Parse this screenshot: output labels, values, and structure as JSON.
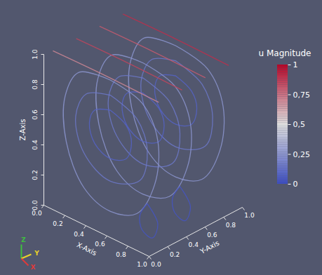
{
  "chart_data": {
    "type": "streamlines",
    "xlabel": "X-Axis",
    "ylabel": "Y-Axis",
    "zlabel": "Z-Axis",
    "xlim": [
      0,
      1
    ],
    "ylim": [
      0,
      1
    ],
    "zlim": [
      0,
      1
    ],
    "xticks": [
      {
        "value": 0,
        "label": "0.0"
      },
      {
        "value": 0.2,
        "label": "0.2"
      },
      {
        "value": 0.4,
        "label": "0.4"
      },
      {
        "value": 0.6,
        "label": "0.6"
      },
      {
        "value": 0.8,
        "label": "0.8"
      },
      {
        "value": 1,
        "label": "1.0"
      }
    ],
    "yticks": [
      {
        "value": 0,
        "label": "0.0"
      },
      {
        "value": 0.2,
        "label": "0.2"
      },
      {
        "value": 0.4,
        "label": "0.4"
      },
      {
        "value": 0.6,
        "label": "0.6"
      },
      {
        "value": 0.8,
        "label": "0.8"
      },
      {
        "value": 1,
        "label": "1.0"
      }
    ],
    "zticks": [
      {
        "value": 0,
        "label": "0.0"
      },
      {
        "value": 0.2,
        "label": "0.2"
      },
      {
        "value": 0.4,
        "label": "0.4"
      },
      {
        "value": 0.6,
        "label": "0.6"
      },
      {
        "value": 0.8,
        "label": "0.8"
      },
      {
        "value": 1,
        "label": "1.0"
      }
    ],
    "colorbar": {
      "label": "u Magnitude",
      "range": [
        0,
        1
      ],
      "ticks": [
        {
          "value": 0,
          "label": "0"
        },
        {
          "value": 0.25,
          "label": "0,25"
        },
        {
          "value": 0.5,
          "label": "0,5"
        },
        {
          "value": 0.75,
          "label": "0,75"
        },
        {
          "value": 1,
          "label": "1"
        }
      ]
    },
    "axes_triad": {
      "x": "X",
      "y": "Y",
      "z": "Z"
    },
    "streamlines": [
      {
        "u": 0.25,
        "points": [
          [
            0.5,
            0.85,
            0.95
          ],
          [
            0.8,
            0.85,
            0.9
          ],
          [
            0.95,
            0.85,
            0.7
          ],
          [
            0.92,
            0.85,
            0.4
          ],
          [
            0.75,
            0.85,
            0.15
          ],
          [
            0.5,
            0.85,
            0.08
          ],
          [
            0.25,
            0.85,
            0.15
          ],
          [
            0.08,
            0.85,
            0.4
          ],
          [
            0.07,
            0.85,
            0.7
          ],
          [
            0.2,
            0.85,
            0.9
          ],
          [
            0.5,
            0.85,
            0.95
          ]
        ]
      },
      {
        "u": 0.15,
        "points": [
          [
            0.5,
            0.85,
            0.85
          ],
          [
            0.75,
            0.85,
            0.78
          ],
          [
            0.85,
            0.85,
            0.6
          ],
          [
            0.78,
            0.85,
            0.38
          ],
          [
            0.5,
            0.85,
            0.28
          ],
          [
            0.25,
            0.85,
            0.38
          ],
          [
            0.17,
            0.85,
            0.6
          ],
          [
            0.27,
            0.85,
            0.78
          ],
          [
            0.5,
            0.85,
            0.85
          ]
        ]
      },
      {
        "u": 0.08,
        "points": [
          [
            0.5,
            0.85,
            0.75
          ],
          [
            0.65,
            0.85,
            0.7
          ],
          [
            0.7,
            0.85,
            0.6
          ],
          [
            0.65,
            0.85,
            0.48
          ],
          [
            0.5,
            0.85,
            0.43
          ],
          [
            0.35,
            0.85,
            0.48
          ],
          [
            0.3,
            0.85,
            0.6
          ],
          [
            0.35,
            0.85,
            0.7
          ],
          [
            0.5,
            0.85,
            0.75
          ]
        ]
      },
      {
        "u": 0.25,
        "points": [
          [
            0.5,
            0.5,
            0.95
          ],
          [
            0.8,
            0.5,
            0.9
          ],
          [
            0.95,
            0.5,
            0.7
          ],
          [
            0.92,
            0.5,
            0.4
          ],
          [
            0.75,
            0.5,
            0.15
          ],
          [
            0.5,
            0.5,
            0.08
          ],
          [
            0.25,
            0.5,
            0.15
          ],
          [
            0.08,
            0.5,
            0.4
          ],
          [
            0.07,
            0.5,
            0.7
          ],
          [
            0.2,
            0.5,
            0.9
          ],
          [
            0.5,
            0.5,
            0.95
          ]
        ]
      },
      {
        "u": 0.15,
        "points": [
          [
            0.5,
            0.5,
            0.85
          ],
          [
            0.75,
            0.5,
            0.78
          ],
          [
            0.85,
            0.5,
            0.6
          ],
          [
            0.78,
            0.5,
            0.38
          ],
          [
            0.5,
            0.5,
            0.28
          ],
          [
            0.25,
            0.5,
            0.38
          ],
          [
            0.17,
            0.5,
            0.6
          ],
          [
            0.27,
            0.5,
            0.78
          ],
          [
            0.5,
            0.5,
            0.85
          ]
        ]
      },
      {
        "u": 0.08,
        "points": [
          [
            0.5,
            0.5,
            0.75
          ],
          [
            0.65,
            0.5,
            0.7
          ],
          [
            0.7,
            0.5,
            0.6
          ],
          [
            0.65,
            0.5,
            0.48
          ],
          [
            0.5,
            0.5,
            0.43
          ],
          [
            0.35,
            0.5,
            0.48
          ],
          [
            0.3,
            0.5,
            0.6
          ],
          [
            0.35,
            0.5,
            0.7
          ],
          [
            0.5,
            0.5,
            0.75
          ]
        ]
      },
      {
        "u": 0.03,
        "points": [
          [
            0.85,
            0.5,
            0.25
          ],
          [
            0.95,
            0.5,
            0.15
          ],
          [
            0.9,
            0.5,
            0.04
          ],
          [
            0.8,
            0.5,
            0.06
          ],
          [
            0.78,
            0.5,
            0.15
          ],
          [
            0.85,
            0.5,
            0.25
          ]
        ]
      },
      {
        "u": 0.25,
        "points": [
          [
            0.5,
            0.15,
            0.95
          ],
          [
            0.8,
            0.15,
            0.9
          ],
          [
            0.95,
            0.15,
            0.7
          ],
          [
            0.92,
            0.15,
            0.4
          ],
          [
            0.75,
            0.15,
            0.15
          ],
          [
            0.5,
            0.15,
            0.08
          ],
          [
            0.25,
            0.15,
            0.15
          ],
          [
            0.08,
            0.15,
            0.4
          ],
          [
            0.07,
            0.15,
            0.7
          ],
          [
            0.2,
            0.15,
            0.9
          ],
          [
            0.5,
            0.15,
            0.95
          ]
        ]
      },
      {
        "u": 0.15,
        "points": [
          [
            0.5,
            0.15,
            0.85
          ],
          [
            0.75,
            0.15,
            0.78
          ],
          [
            0.85,
            0.15,
            0.6
          ],
          [
            0.78,
            0.15,
            0.38
          ],
          [
            0.5,
            0.15,
            0.28
          ],
          [
            0.25,
            0.15,
            0.38
          ],
          [
            0.17,
            0.15,
            0.6
          ],
          [
            0.27,
            0.15,
            0.78
          ],
          [
            0.5,
            0.15,
            0.85
          ]
        ]
      },
      {
        "u": 0.08,
        "points": [
          [
            0.5,
            0.15,
            0.75
          ],
          [
            0.65,
            0.15,
            0.7
          ],
          [
            0.7,
            0.15,
            0.6
          ],
          [
            0.65,
            0.15,
            0.48
          ],
          [
            0.5,
            0.15,
            0.43
          ],
          [
            0.35,
            0.15,
            0.48
          ],
          [
            0.3,
            0.15,
            0.6
          ],
          [
            0.35,
            0.15,
            0.7
          ],
          [
            0.5,
            0.15,
            0.75
          ]
        ]
      },
      {
        "u": 0.03,
        "points": [
          [
            0.85,
            0.15,
            0.25
          ],
          [
            0.95,
            0.15,
            0.15
          ],
          [
            0.9,
            0.15,
            0.04
          ],
          [
            0.8,
            0.15,
            0.06
          ],
          [
            0.78,
            0.15,
            0.15
          ],
          [
            0.85,
            0.15,
            0.25
          ]
        ]
      },
      {
        "u": 0.9,
        "points": [
          [
            0,
            0.85,
            0.99
          ],
          [
            0.5,
            0.85,
            0.995
          ],
          [
            1,
            0.85,
            0.99
          ]
        ]
      },
      {
        "u": 0.8,
        "points": [
          [
            0,
            0.6,
            0.99
          ],
          [
            0.5,
            0.6,
            0.995
          ],
          [
            1,
            0.6,
            0.99
          ]
        ]
      },
      {
        "u": 0.85,
        "points": [
          [
            0,
            0.35,
            0.99
          ],
          [
            0.5,
            0.35,
            0.995
          ],
          [
            1,
            0.35,
            0.99
          ]
        ]
      },
      {
        "u": 0.7,
        "points": [
          [
            0,
            0.1,
            0.99
          ],
          [
            0.5,
            0.1,
            0.995
          ],
          [
            1,
            0.1,
            0.99
          ]
        ]
      }
    ]
  }
}
